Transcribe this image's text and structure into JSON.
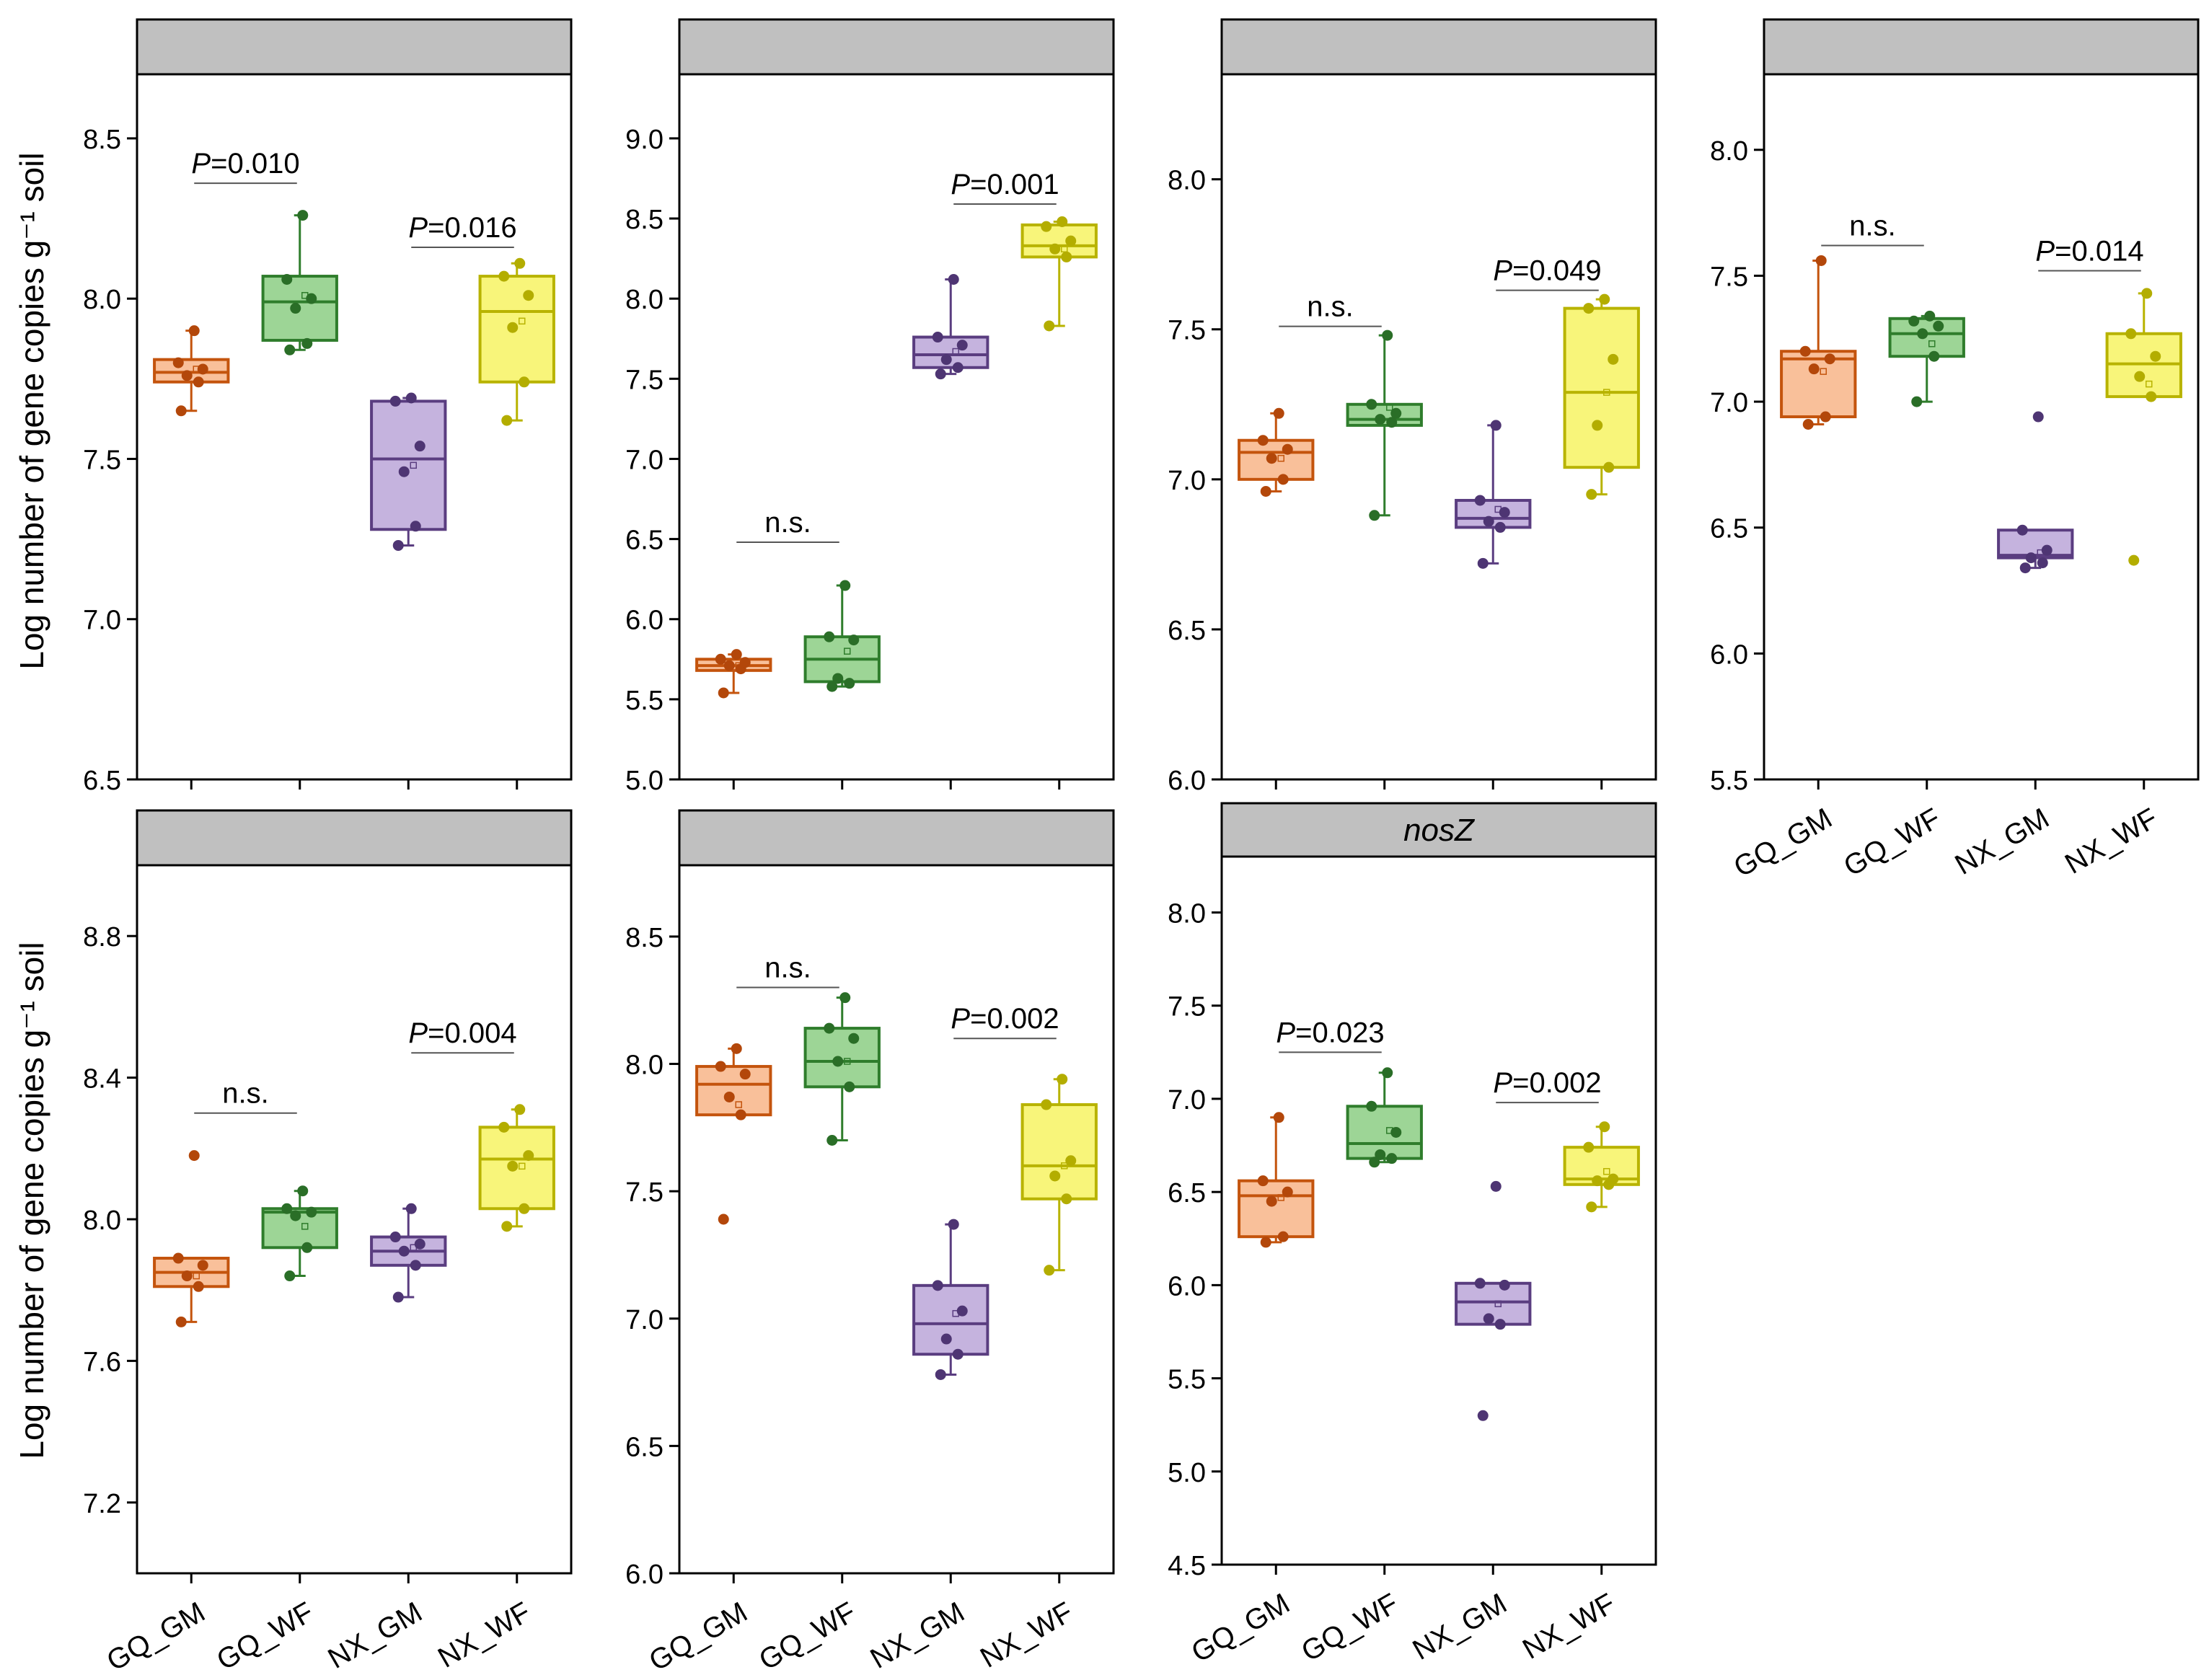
{
  "figure": {
    "y_axis_label_top": "Log number of gene copies g⁻¹ soil",
    "y_axis_label_bottom": "Log number of gene copies g⁻¹ soil"
  },
  "colors": {
    "GQ_GM": {
      "stroke": "#c4540d",
      "fill": "#f9c09a",
      "dot": "#b3470a"
    },
    "GQ_WF": {
      "stroke": "#2f7d2c",
      "fill": "#9dd596",
      "dot": "#2a6e27"
    },
    "NX_GM": {
      "stroke": "#5a3d80",
      "fill": "#c5b3de",
      "dot": "#4e3573"
    },
    "NX_WF": {
      "stroke": "#b8b300",
      "fill": "#f8f57a",
      "dot": "#b3ad00"
    },
    "header_fill": "#c0c0c0"
  },
  "chart_data": [
    {
      "type": "box",
      "header": "",
      "categories": [
        "GQ_GM",
        "GQ_WF",
        "NX_GM",
        "NX_WF"
      ],
      "ylim": [
        6.5,
        8.7
      ],
      "yticks": [
        "6.5",
        "7.0",
        "7.5",
        "8.0",
        "8.5"
      ],
      "boxes": [
        {
          "q1": 7.74,
          "median": 7.77,
          "q3": 7.81,
          "lo": 7.65,
          "hi": 7.9,
          "mean": 7.78,
          "points": [
            7.65,
            7.74,
            7.76,
            7.78,
            7.8,
            7.9
          ]
        },
        {
          "q1": 7.87,
          "median": 7.99,
          "q3": 8.07,
          "lo": 7.84,
          "hi": 8.26,
          "mean": 8.01,
          "points": [
            7.84,
            7.86,
            7.97,
            8.0,
            8.06,
            8.26
          ]
        },
        {
          "q1": 7.28,
          "median": 7.5,
          "q3": 7.68,
          "lo": 7.23,
          "hi": 7.69,
          "mean": 7.48,
          "points": [
            7.23,
            7.29,
            7.46,
            7.54,
            7.68,
            7.69
          ]
        },
        {
          "q1": 7.74,
          "median": 7.96,
          "q3": 8.07,
          "lo": 7.62,
          "hi": 8.11,
          "mean": 7.93,
          "points": [
            7.62,
            7.74,
            7.91,
            8.01,
            8.07,
            8.11
          ]
        }
      ],
      "annotations": [
        {
          "p": "P",
          "label": "=0.010",
          "pair": [
            0,
            1
          ],
          "y": 8.36
        },
        {
          "p": "P",
          "label": "=0.016",
          "pair": [
            2,
            3
          ],
          "y": 8.16
        }
      ]
    },
    {
      "type": "box",
      "header": "",
      "categories": [
        "GQ_GM",
        "GQ_WF",
        "NX_GM",
        "NX_WF"
      ],
      "ylim": [
        5.0,
        9.4
      ],
      "yticks": [
        "5.0",
        "5.5",
        "6.0",
        "6.5",
        "7.0",
        "7.5",
        "8.0",
        "8.5",
        "9.0"
      ],
      "boxes": [
        {
          "q1": 5.68,
          "median": 5.71,
          "q3": 5.75,
          "lo": 5.54,
          "hi": 5.78,
          "mean": 5.71,
          "points": [
            5.54,
            5.69,
            5.71,
            5.73,
            5.75,
            5.78
          ]
        },
        {
          "q1": 5.61,
          "median": 5.75,
          "q3": 5.89,
          "lo": 5.58,
          "hi": 6.21,
          "mean": 5.8,
          "points": [
            5.58,
            5.6,
            5.63,
            5.87,
            5.89,
            6.21
          ]
        },
        {
          "q1": 7.57,
          "median": 7.65,
          "q3": 7.76,
          "lo": 7.53,
          "hi": 8.12,
          "mean": 7.67,
          "points": [
            7.53,
            7.57,
            7.62,
            7.71,
            7.76,
            8.12
          ]
        },
        {
          "q1": 8.26,
          "median": 8.33,
          "q3": 8.46,
          "lo": 7.83,
          "hi": 8.48,
          "mean": 8.31,
          "points": [
            7.83,
            8.26,
            8.31,
            8.36,
            8.45,
            8.48
          ]
        }
      ],
      "annotations": [
        {
          "p": "",
          "label": "n.s.",
          "pair": [
            0,
            1
          ],
          "y": 6.48
        },
        {
          "p": "P",
          "label": "=0.001",
          "pair": [
            2,
            3
          ],
          "y": 8.59
        }
      ]
    },
    {
      "type": "box",
      "header": "",
      "categories": [
        "GQ_GM",
        "GQ_WF",
        "NX_GM",
        "NX_WF"
      ],
      "ylim": [
        6.0,
        8.35
      ],
      "yticks": [
        "6.0",
        "6.5",
        "7.0",
        "7.5",
        "8.0"
      ],
      "boxes": [
        {
          "q1": 7.0,
          "median": 7.09,
          "q3": 7.13,
          "lo": 6.96,
          "hi": 7.22,
          "mean": 7.07,
          "points": [
            6.96,
            7.0,
            7.07,
            7.1,
            7.13,
            7.22
          ]
        },
        {
          "q1": 7.18,
          "median": 7.2,
          "q3": 7.25,
          "lo": 6.88,
          "hi": 7.48,
          "mean": 7.24,
          "points": [
            6.88,
            7.19,
            7.2,
            7.22,
            7.25,
            7.48
          ]
        },
        {
          "q1": 6.84,
          "median": 6.87,
          "q3": 6.93,
          "lo": 6.72,
          "hi": 7.18,
          "mean": 6.9,
          "points": [
            6.72,
            6.84,
            6.86,
            6.89,
            6.93,
            7.18
          ]
        },
        {
          "q1": 7.04,
          "median": 7.29,
          "q3": 7.57,
          "lo": 6.95,
          "hi": 7.6,
          "mean": 7.29,
          "points": [
            6.95,
            7.04,
            7.18,
            7.4,
            7.57,
            7.6
          ]
        }
      ],
      "annotations": [
        {
          "p": "",
          "label": "n.s.",
          "pair": [
            0,
            1
          ],
          "y": 7.51
        },
        {
          "p": "P",
          "label": "=0.049",
          "pair": [
            2,
            3
          ],
          "y": 7.63
        }
      ]
    },
    {
      "type": "box",
      "header": "",
      "categories": [
        "GQ_GM",
        "GQ_WF",
        "NX_GM",
        "NX_WF"
      ],
      "ylim": [
        5.5,
        8.3
      ],
      "yticks": [
        "5.5",
        "6.0",
        "6.5",
        "7.0",
        "7.5",
        "8.0"
      ],
      "boxes": [
        {
          "q1": 6.94,
          "median": 7.17,
          "q3": 7.2,
          "lo": 6.91,
          "hi": 7.56,
          "mean": 7.12,
          "points": [
            6.91,
            6.94,
            7.13,
            7.17,
            7.2,
            7.56
          ]
        },
        {
          "q1": 7.18,
          "median": 7.27,
          "q3": 7.33,
          "lo": 7.0,
          "hi": 7.34,
          "mean": 7.23,
          "points": [
            7.0,
            7.18,
            7.27,
            7.3,
            7.32,
            7.34
          ]
        },
        {
          "q1": 6.38,
          "median": 6.39,
          "q3": 6.49,
          "lo": 6.34,
          "hi": 6.49,
          "mean": 6.4,
          "points": [
            6.34,
            6.36,
            6.38,
            6.41,
            6.49,
            6.94
          ]
        },
        {
          "q1": 7.02,
          "median": 7.15,
          "q3": 7.27,
          "lo": 7.02,
          "hi": 7.43,
          "mean": 7.07,
          "points": [
            6.37,
            7.02,
            7.1,
            7.18,
            7.27,
            7.43
          ]
        }
      ],
      "annotations": [
        {
          "p": "",
          "label": "n.s.",
          "pair": [
            0,
            1
          ],
          "y": 7.62
        },
        {
          "p": "P",
          "label": "=0.014",
          "pair": [
            2,
            3
          ],
          "y": 7.52
        }
      ]
    },
    {
      "type": "box",
      "header": "",
      "categories": [
        "GQ_GM",
        "GQ_WF",
        "NX_GM",
        "NX_WF"
      ],
      "ylim": [
        7.0,
        9.0
      ],
      "yticks": [
        "7.2",
        "7.6",
        "8.0",
        "8.4",
        "8.8"
      ],
      "boxes": [
        {
          "q1": 7.81,
          "median": 7.85,
          "q3": 7.89,
          "lo": 7.71,
          "hi": 7.89,
          "mean": 7.84,
          "points": [
            7.71,
            7.81,
            7.84,
            7.87,
            7.89,
            8.18
          ]
        },
        {
          "q1": 7.92,
          "median": 8.02,
          "q3": 8.03,
          "lo": 7.84,
          "hi": 8.08,
          "mean": 7.98,
          "points": [
            7.84,
            7.92,
            8.01,
            8.02,
            8.03,
            8.08
          ]
        },
        {
          "q1": 7.87,
          "median": 7.91,
          "q3": 7.95,
          "lo": 7.78,
          "hi": 8.03,
          "mean": 7.92,
          "points": [
            7.78,
            7.87,
            7.91,
            7.93,
            7.95,
            8.03
          ]
        },
        {
          "q1": 8.03,
          "median": 8.17,
          "q3": 8.26,
          "lo": 7.98,
          "hi": 8.31,
          "mean": 8.15,
          "points": [
            7.98,
            8.03,
            8.15,
            8.18,
            8.26,
            8.31
          ]
        }
      ],
      "annotations": [
        {
          "p": "",
          "label": "n.s.",
          "pair": [
            0,
            1
          ],
          "y": 8.3
        },
        {
          "p": "P",
          "label": "=0.004",
          "pair": [
            2,
            3
          ],
          "y": 8.47
        }
      ]
    },
    {
      "type": "box",
      "header": "",
      "categories": [
        "GQ_GM",
        "GQ_WF",
        "NX_GM",
        "NX_WF"
      ],
      "ylim": [
        6.0,
        8.78
      ],
      "yticks": [
        "6.0",
        "6.5",
        "7.0",
        "7.5",
        "8.0",
        "8.5"
      ],
      "boxes": [
        {
          "q1": 7.8,
          "median": 7.92,
          "q3": 7.99,
          "lo": 7.8,
          "hi": 8.06,
          "mean": 7.84,
          "points": [
            7.39,
            7.8,
            7.87,
            7.96,
            7.99,
            8.06
          ]
        },
        {
          "q1": 7.91,
          "median": 8.01,
          "q3": 8.14,
          "lo": 7.7,
          "hi": 8.26,
          "mean": 8.01,
          "points": [
            7.7,
            7.91,
            8.01,
            8.1,
            8.14,
            8.26
          ]
        },
        {
          "q1": 6.86,
          "median": 6.98,
          "q3": 7.13,
          "lo": 6.78,
          "hi": 7.37,
          "mean": 7.02,
          "points": [
            6.78,
            6.86,
            6.92,
            7.03,
            7.13,
            7.37
          ]
        },
        {
          "q1": 7.47,
          "median": 7.6,
          "q3": 7.84,
          "lo": 7.19,
          "hi": 7.94,
          "mean": 7.6,
          "points": [
            7.19,
            7.47,
            7.56,
            7.62,
            7.84,
            7.94
          ]
        }
      ],
      "annotations": [
        {
          "p": "",
          "label": "n.s.",
          "pair": [
            0,
            1
          ],
          "y": 8.3
        },
        {
          "p": "P",
          "label": "=0.002",
          "pair": [
            2,
            3
          ],
          "y": 8.1
        }
      ]
    },
    {
      "type": "box",
      "header": "nosZ",
      "categories": [
        "GQ_GM",
        "GQ_WF",
        "NX_GM",
        "NX_WF"
      ],
      "ylim": [
        4.5,
        8.3
      ],
      "yticks": [
        "4.5",
        "5.0",
        "5.5",
        "6.0",
        "6.5",
        "7.0",
        "7.5",
        "8.0"
      ],
      "boxes": [
        {
          "q1": 6.26,
          "median": 6.48,
          "q3": 6.56,
          "lo": 6.23,
          "hi": 6.9,
          "mean": 6.47,
          "points": [
            6.23,
            6.26,
            6.45,
            6.5,
            6.56,
            6.9
          ]
        },
        {
          "q1": 6.68,
          "median": 6.76,
          "q3": 6.96,
          "lo": 6.66,
          "hi": 7.14,
          "mean": 6.83,
          "points": [
            6.66,
            6.68,
            6.7,
            6.82,
            6.96,
            7.14
          ]
        },
        {
          "q1": 5.79,
          "median": 5.91,
          "q3": 6.01,
          "lo": 5.79,
          "hi": 6.01,
          "mean": 5.9,
          "points": [
            5.3,
            5.79,
            5.82,
            6.0,
            6.01,
            6.53
          ]
        },
        {
          "q1": 6.54,
          "median": 6.57,
          "q3": 6.74,
          "lo": 6.42,
          "hi": 6.85,
          "mean": 6.61,
          "points": [
            6.42,
            6.54,
            6.56,
            6.57,
            6.74,
            6.85
          ]
        }
      ],
      "annotations": [
        {
          "p": "P",
          "label": "=0.023",
          "pair": [
            0,
            1
          ],
          "y": 7.25
        },
        {
          "p": "P",
          "label": "=0.002",
          "pair": [
            2,
            3
          ],
          "y": 6.98
        }
      ]
    }
  ]
}
